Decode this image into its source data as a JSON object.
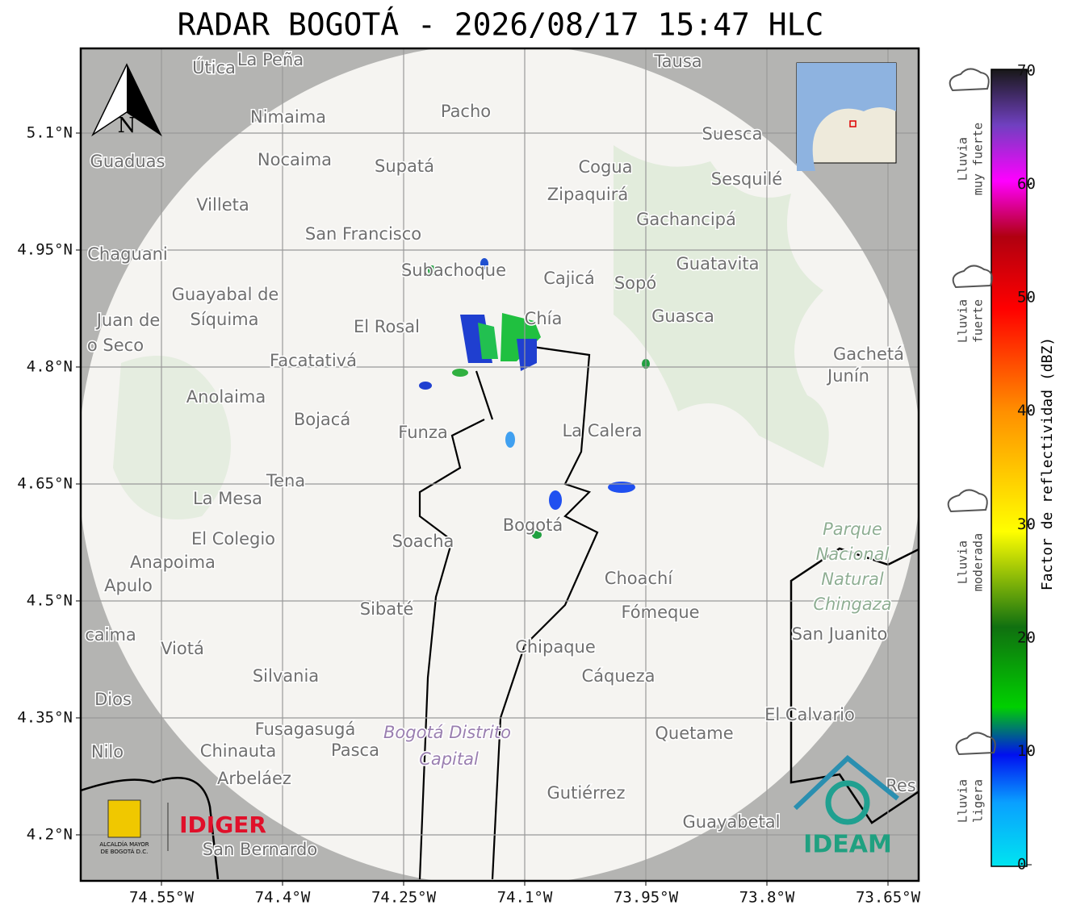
{
  "title": "RADAR BOGOTÁ - 2026/08/17 15:47 HLC",
  "map": {
    "xlim": [
      -74.65,
      -73.612
    ],
    "ylim": [
      4.141,
      5.2086
    ],
    "xticks": [
      {
        "value": -74.55,
        "label": "74.55°W"
      },
      {
        "value": -74.4,
        "label": "74.4°W"
      },
      {
        "value": -74.25,
        "label": "74.25°W"
      },
      {
        "value": -74.1,
        "label": "74.1°W"
      },
      {
        "value": -73.95,
        "label": "73.95°W"
      },
      {
        "value": -73.8,
        "label": "73.8°W"
      },
      {
        "value": -73.65,
        "label": "73.65°W"
      }
    ],
    "yticks": [
      {
        "value": 5.1,
        "label": "5.1°N"
      },
      {
        "value": 4.95,
        "label": "4.95°N"
      },
      {
        "value": 4.8,
        "label": "4.8°N"
      },
      {
        "value": 4.65,
        "label": "4.65°N"
      },
      {
        "value": 4.5,
        "label": "4.5°N"
      },
      {
        "value": 4.35,
        "label": "4.35°N"
      },
      {
        "value": 4.2,
        "label": "4.2°N"
      }
    ],
    "north": "N",
    "places": [
      "Útica",
      "La Peña",
      "Tausa",
      "Pacho",
      "Nimaima",
      "Suesca",
      "Guaduas",
      "Nocaima",
      "Supatá",
      "Cogua",
      "Sesquilé",
      "Zipaquirá",
      "Villeta",
      "Gachancipá",
      "San Francisco",
      "Chaguani",
      "Guatavita",
      "Subachoque",
      "Cajicá",
      "Sopó",
      "Guayabal de",
      "Síquima",
      "Juan de",
      "Guasca",
      "Chía",
      "El Rosal",
      "o Seco",
      "Facatativá",
      "Gachetá",
      "Junín",
      "Anolaima",
      "Bojacá",
      "Funza",
      "La Calera",
      "Tena",
      "La Mesa",
      "Bogotá",
      "Parque",
      "Nacional",
      "Natural",
      "Chingaza",
      "El Colegio",
      "Soacha",
      "Anapoima",
      "Apulo",
      "Choachí",
      "Sibaté",
      "Fómeque",
      "San Juanito",
      "caima",
      "Viotá",
      "Chipaque",
      "Silvania",
      "Cáqueza",
      "Dios",
      "El Calvario",
      "Fusagasugá",
      "Bogotá Distrito",
      "Capital",
      "Quetame",
      "Nilo",
      "Chinauta",
      "Pasca",
      "Arbeláez",
      "Gutiérrez",
      "Guayabetal",
      "San Bernardo",
      "Res"
    ],
    "logos": {
      "alcaldia": [
        "ALCALDÍA MAYOR",
        "DE BOGOTÁ D.C."
      ],
      "idiger": "IDIGER",
      "ideam": "IDEAM"
    }
  },
  "colorbar": {
    "label": "Factor de reflectividad (dBZ)",
    "lim": [
      0,
      70
    ],
    "ticks": [
      0,
      10,
      20,
      30,
      40,
      50,
      60,
      70
    ],
    "categories": [
      [
        "Lluvia",
        "muy fuerte"
      ],
      [
        "Lluvia",
        "fuerte"
      ],
      [
        "Lluvia",
        "moderada"
      ],
      [
        "Lluvia",
        "ligera"
      ]
    ]
  }
}
